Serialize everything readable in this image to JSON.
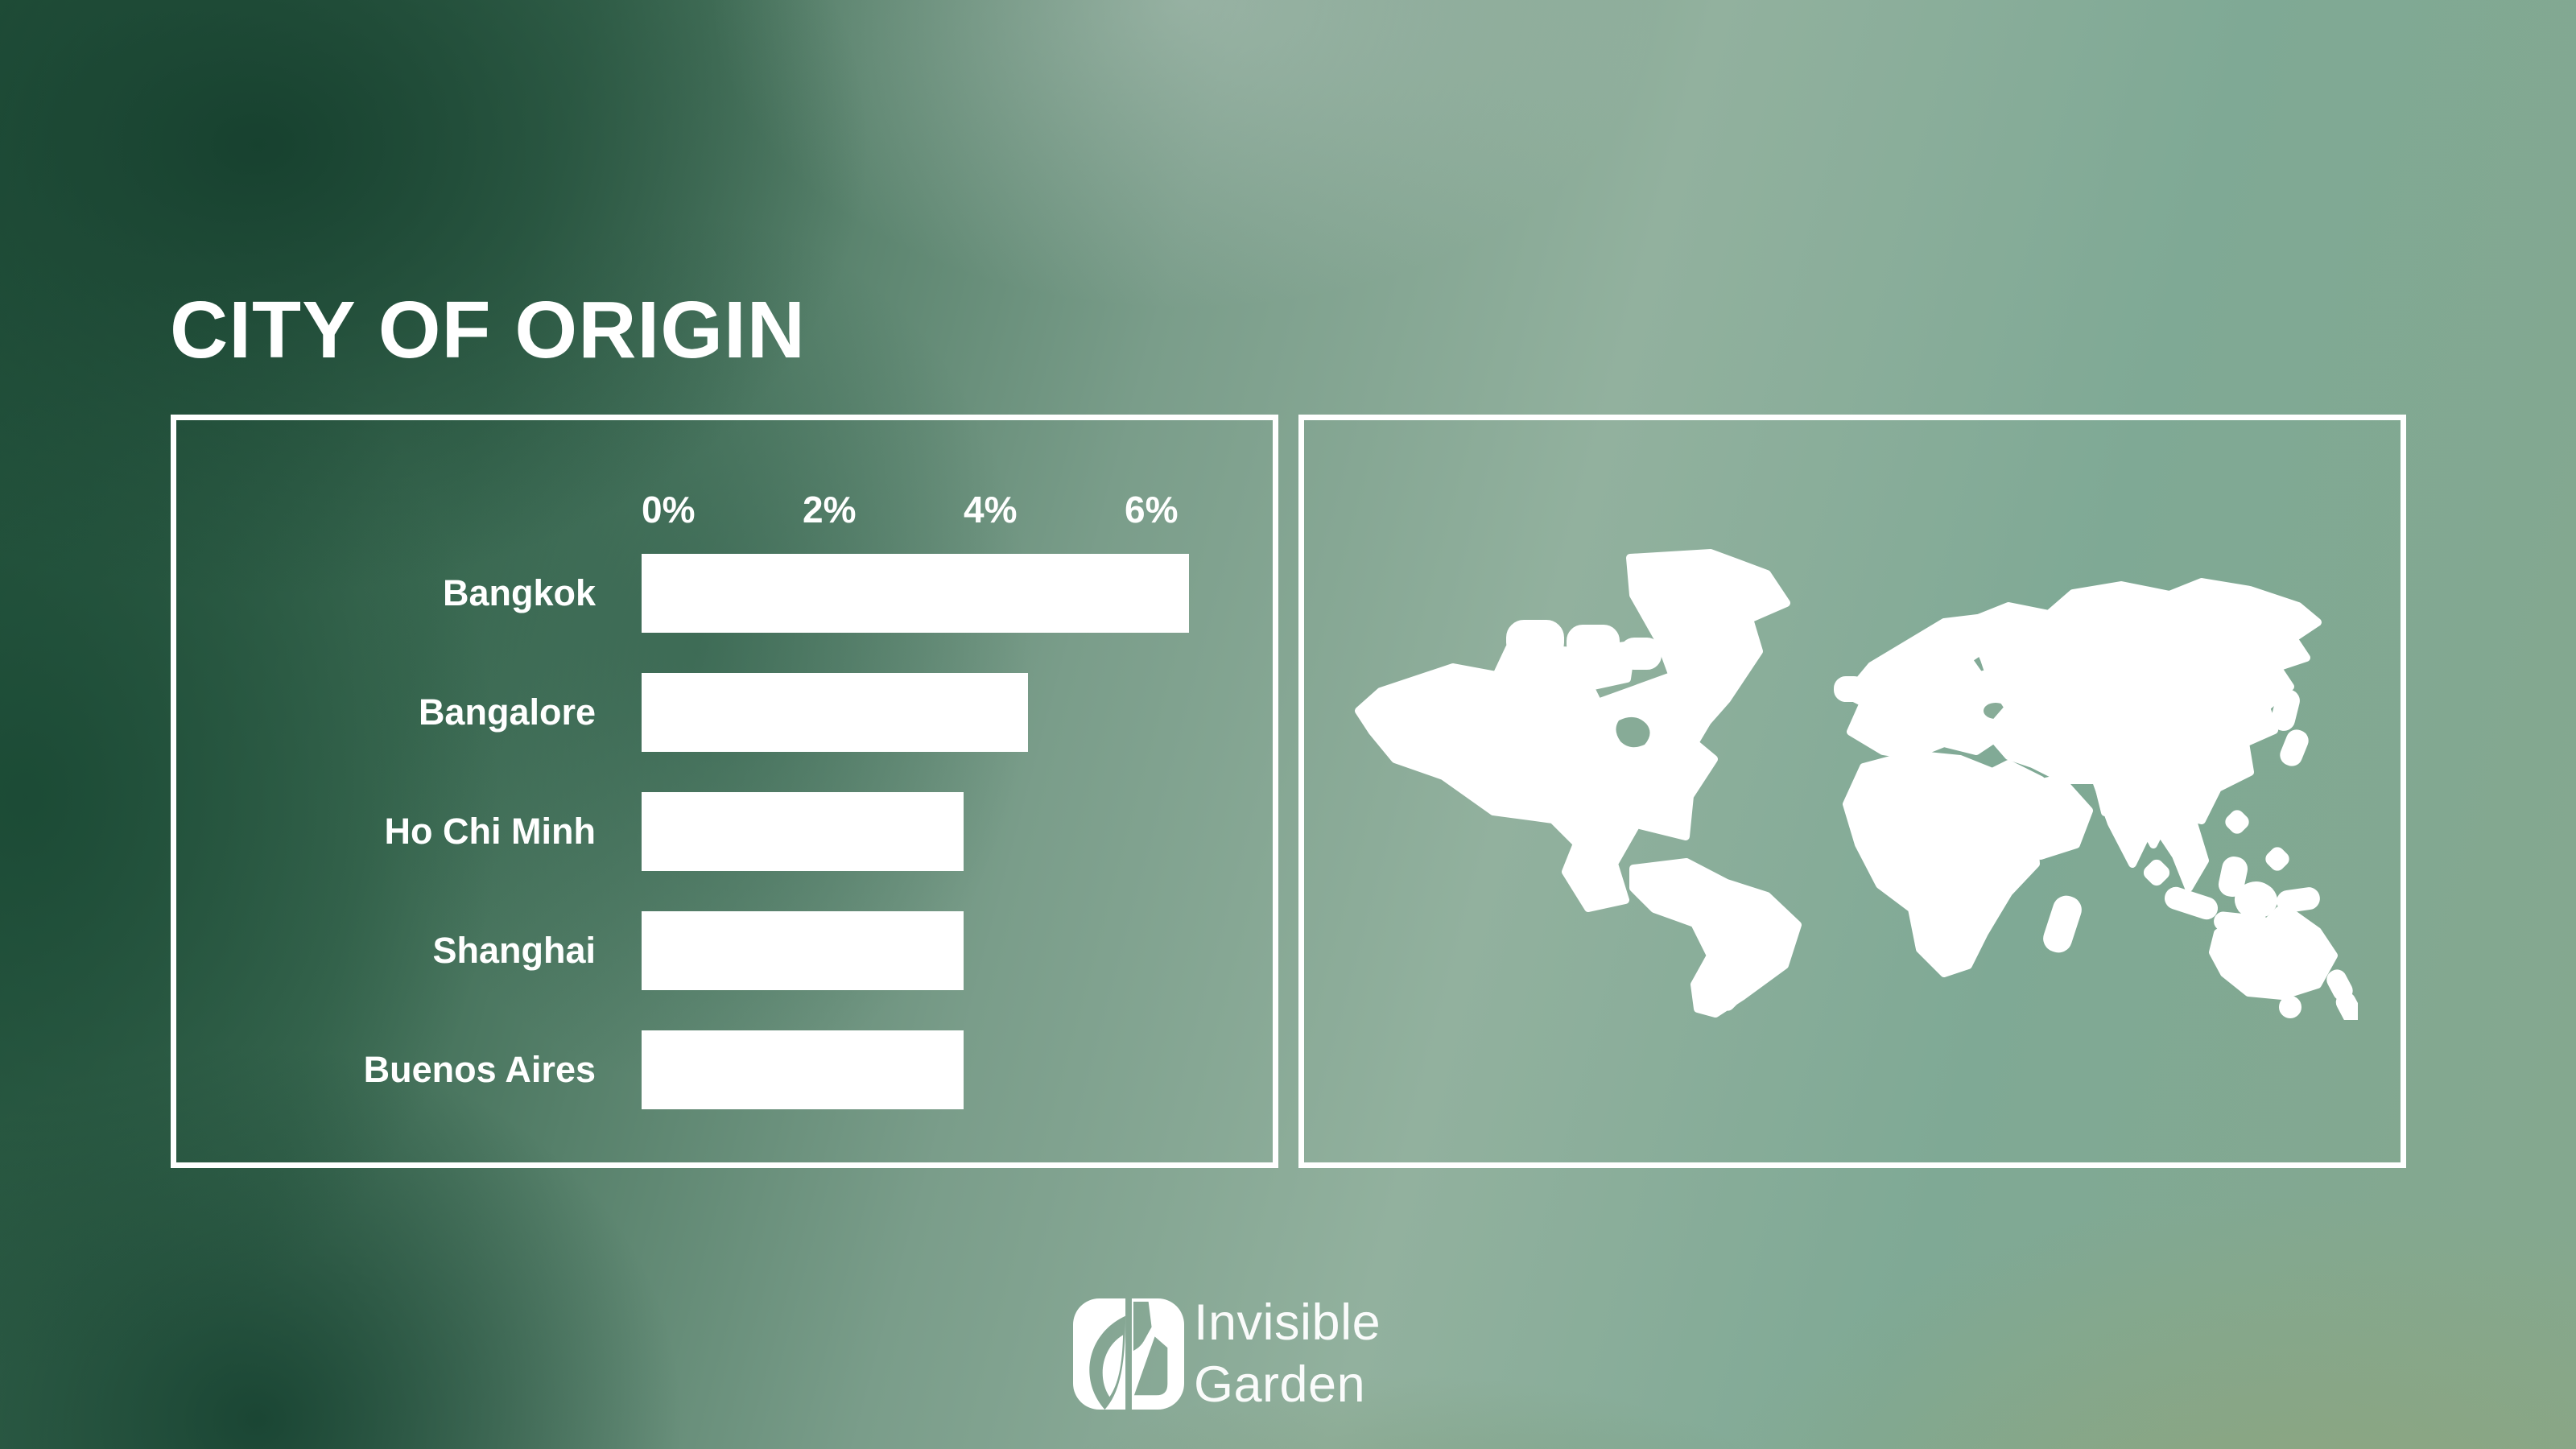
{
  "title": "CITY OF ORIGIN",
  "chart_data": {
    "type": "bar",
    "orientation": "horizontal",
    "title": "CITY OF ORIGIN",
    "categories": [
      "Bangkok",
      "Bangalore",
      "Ho Chi Minh",
      "Shanghai",
      "Buenos Aires"
    ],
    "values": [
      6.8,
      4.8,
      4.0,
      4.0,
      4.0
    ],
    "unit": "%",
    "xlabel": "",
    "ylabel": "",
    "xlim": [
      0,
      6.9
    ],
    "x_ticks": [
      "0%",
      "2%",
      "4%",
      "6%"
    ],
    "x_tick_values": [
      0,
      2,
      4,
      6
    ],
    "grid": false,
    "legend": false,
    "bar_color": "#ffffff"
  },
  "map_panel": {
    "description": "white world map silhouette"
  },
  "logo": {
    "line1": "Invisible",
    "line2": "Garden",
    "icon": "leaf-logo-icon"
  },
  "colors": {
    "text": "#ffffff",
    "bars": "#ffffff",
    "panel_border": "#ffffff",
    "bg_dark_green": "#24543d",
    "bg_sage": "#8fb09c",
    "bg_teal_sage": "#7cab97",
    "bg_olive": "#8aa883"
  }
}
